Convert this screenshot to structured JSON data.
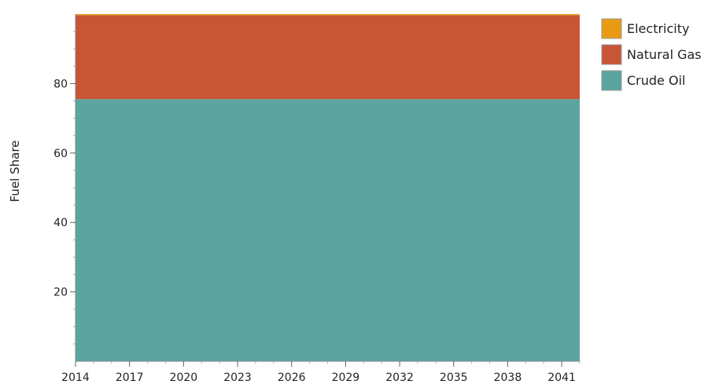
{
  "chart_data": {
    "type": "area",
    "stacked": true,
    "x": [
      2014,
      2015,
      2016,
      2017,
      2018,
      2019,
      2020,
      2021,
      2022,
      2023,
      2024,
      2025,
      2026,
      2027,
      2028,
      2029,
      2030,
      2031,
      2032,
      2033,
      2034,
      2035,
      2036,
      2037,
      2038,
      2039,
      2040,
      2041,
      2042
    ],
    "x_ticks": [
      "2014",
      "2017",
      "2020",
      "2023",
      "2026",
      "2029",
      "2032",
      "2035",
      "2038",
      "2041"
    ],
    "y_ticks": [
      "20",
      "40",
      "60",
      "80"
    ],
    "xlim": [
      2014,
      2042
    ],
    "ylim": [
      0,
      100
    ],
    "xlabel": "",
    "ylabel": "Fuel Share",
    "grid": false,
    "legend_position": "top-right",
    "series": [
      {
        "name": "Crude Oil",
        "color": "#5ba4a0",
        "values": [
          75.5,
          75.5,
          75.5,
          75.5,
          75.5,
          75.5,
          75.5,
          75.5,
          75.5,
          75.5,
          75.5,
          75.5,
          75.5,
          75.5,
          75.5,
          75.5,
          75.5,
          75.5,
          75.5,
          75.5,
          75.5,
          75.5,
          75.5,
          75.5,
          75.5,
          75.5,
          75.5,
          75.5,
          75.5
        ]
      },
      {
        "name": "Natural Gas",
        "color": "#c85535",
        "values": [
          24.2,
          24.2,
          24.2,
          24.2,
          24.2,
          24.2,
          24.2,
          24.2,
          24.2,
          24.2,
          24.2,
          24.2,
          24.2,
          24.2,
          24.2,
          24.2,
          24.2,
          24.2,
          24.2,
          24.2,
          24.2,
          24.2,
          24.2,
          24.2,
          24.2,
          24.2,
          24.2,
          24.2,
          24.2
        ]
      },
      {
        "name": "Electricity",
        "color": "#e89b12",
        "values": [
          0.3,
          0.3,
          0.3,
          0.3,
          0.3,
          0.3,
          0.3,
          0.3,
          0.3,
          0.3,
          0.3,
          0.3,
          0.3,
          0.3,
          0.3,
          0.3,
          0.3,
          0.3,
          0.3,
          0.3,
          0.3,
          0.3,
          0.3,
          0.3,
          0.3,
          0.3,
          0.3,
          0.3,
          0.3
        ]
      }
    ],
    "legend_order": [
      "Electricity",
      "Natural Gas",
      "Crude Oil"
    ]
  }
}
